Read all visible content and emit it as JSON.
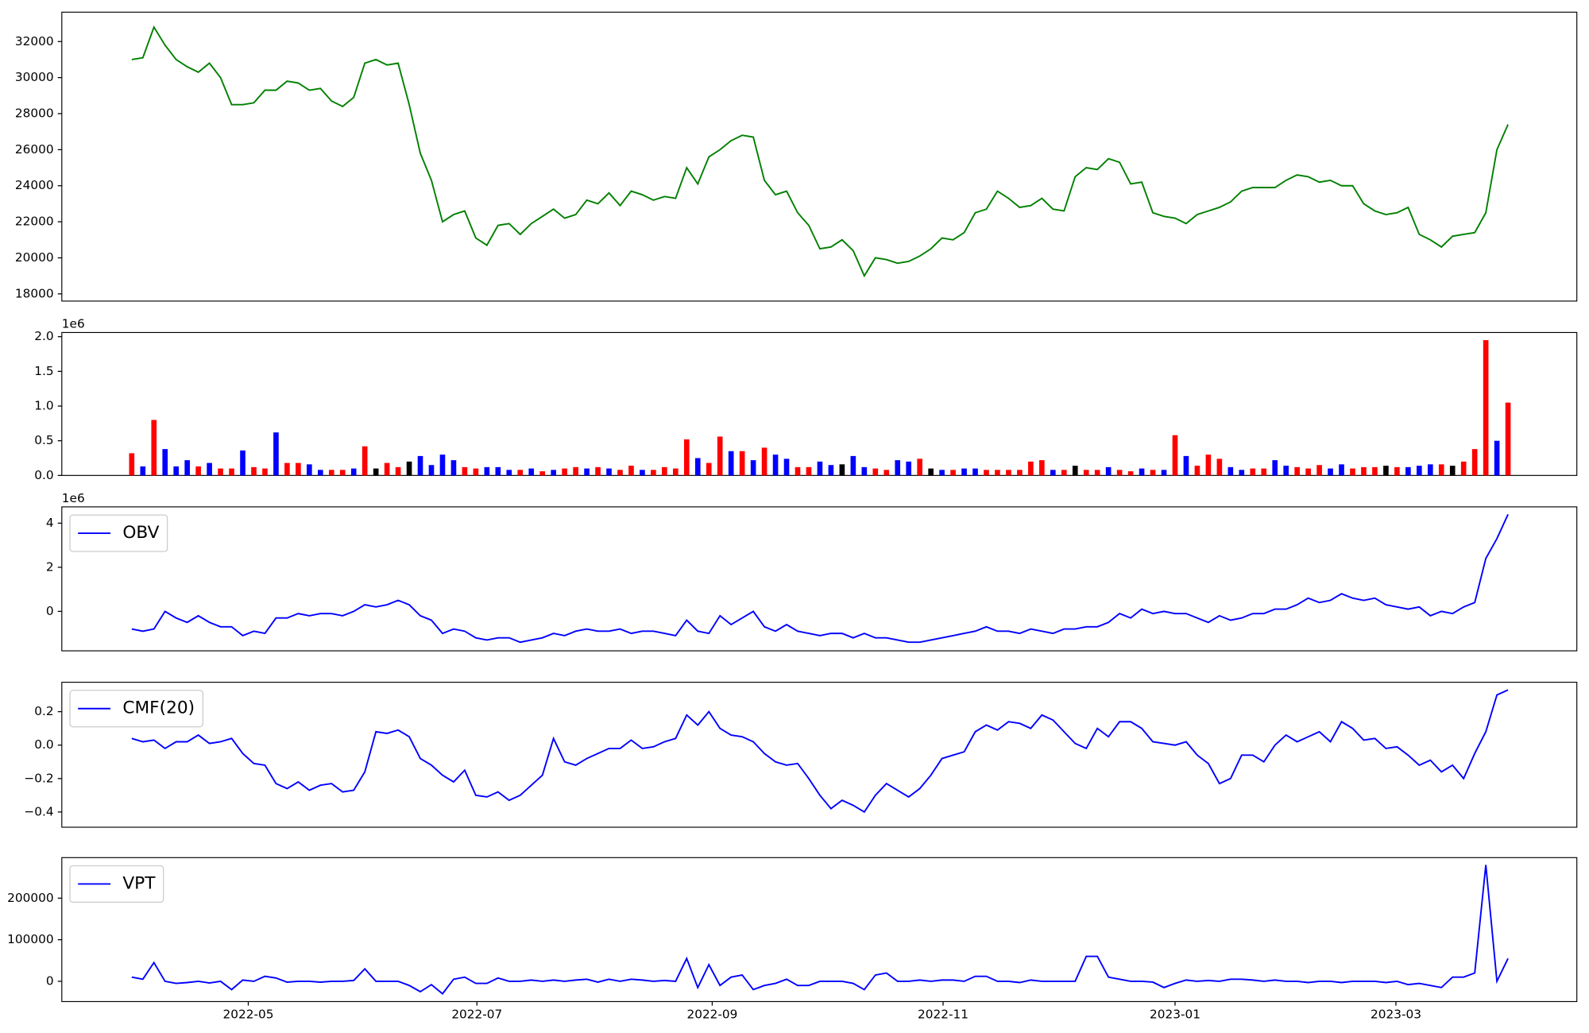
{
  "chart_data": [
    {
      "type": "line",
      "xlim": [
        -6.3,
        130.2
      ],
      "ylim": [
        17600,
        33630
      ],
      "yticks": [
        18000,
        20000,
        22000,
        24000,
        26000,
        28000,
        30000,
        32000
      ],
      "series": [
        {
          "color": "#008000",
          "values": [
            31000,
            31100,
            32800,
            31800,
            31000,
            30600,
            30300,
            30800,
            30000,
            28500,
            28500,
            28600,
            29300,
            29300,
            29800,
            29700,
            29300,
            29400,
            28700,
            28400,
            28900,
            30800,
            31000,
            30700,
            30800,
            28500,
            25800,
            24300,
            22000,
            22400,
            22600,
            21100,
            20700,
            21800,
            21900,
            21300,
            21900,
            22300,
            22700,
            22200,
            22400,
            23200,
            23000,
            23600,
            22900,
            23700,
            23500,
            23200,
            23400,
            23300,
            25000,
            24100,
            25600,
            26000,
            26500,
            26800,
            26700,
            24300,
            23500,
            23700,
            22500,
            21800,
            20500,
            20600,
            21000,
            20400,
            19000,
            20000,
            19900,
            19700,
            19800,
            20100,
            20500,
            21100,
            21000,
            21400,
            22500,
            22700,
            23700,
            23300,
            22800,
            22900,
            23300,
            22700,
            22600,
            24500,
            25000,
            24900,
            25500,
            25300,
            24100,
            24200,
            22500,
            22300,
            22200,
            21900,
            22400,
            22600,
            22800,
            23100,
            23700,
            23900,
            23900,
            23900,
            24300,
            24600,
            24500,
            24200,
            24300,
            24000,
            24000,
            23000,
            22600,
            22400,
            22500,
            22800,
            21300,
            21000,
            20600,
            21200,
            21300,
            21400,
            22500,
            26000,
            27400
          ]
        }
      ]
    },
    {
      "type": "bar",
      "xlim": [
        -6.3,
        130.2
      ],
      "ylim": [
        0,
        2.06
      ],
      "y_offset_label": "1e6",
      "yticks": [
        {
          "value": 0,
          "label": "0.0"
        },
        0.5,
        {
          "value": 1,
          "label": "1.0"
        },
        1.5,
        {
          "value": 2,
          "label": "2.0"
        }
      ],
      "values": [
        0.32,
        0.13,
        0.8,
        0.38,
        0.13,
        0.22,
        0.13,
        0.18,
        0.1,
        0.1,
        0.36,
        0.12,
        0.1,
        0.62,
        0.18,
        0.18,
        0.16,
        0.08,
        0.08,
        0.08,
        0.1,
        0.42,
        0.1,
        0.18,
        0.12,
        0.2,
        0.28,
        0.15,
        0.3,
        0.22,
        0.12,
        0.1,
        0.12,
        0.12,
        0.08,
        0.08,
        0.1,
        0.06,
        0.08,
        0.1,
        0.12,
        0.1,
        0.12,
        0.1,
        0.08,
        0.14,
        0.08,
        0.08,
        0.12,
        0.1,
        0.52,
        0.25,
        0.18,
        0.56,
        0.35,
        0.35,
        0.22,
        0.4,
        0.3,
        0.24,
        0.12,
        0.12,
        0.2,
        0.15,
        0.16,
        0.28,
        0.12,
        0.1,
        0.08,
        0.22,
        0.2,
        0.24,
        0.1,
        0.08,
        0.08,
        0.1,
        0.1,
        0.08,
        0.08,
        0.08,
        0.08,
        0.2,
        0.22,
        0.08,
        0.08,
        0.14,
        0.08,
        0.08,
        0.12,
        0.08,
        0.06,
        0.1,
        0.08,
        0.08,
        0.58,
        0.28,
        0.14,
        0.3,
        0.24,
        0.12,
        0.08,
        0.1,
        0.1,
        0.22,
        0.14,
        0.12,
        0.1,
        0.15,
        0.1,
        0.16,
        0.1,
        0.12,
        0.12,
        0.14,
        0.12,
        0.12,
        0.14,
        0.16,
        0.16,
        0.14,
        0.2,
        0.38,
        1.95,
        0.5,
        1.05
      ],
      "colors": [
        "#ff0000",
        "#0000ff",
        "#ff0000",
        "#0000ff",
        "#0000ff",
        "#0000ff",
        "#ff0000",
        "#0000ff",
        "#ff0000",
        "#ff0000",
        "#0000ff",
        "#ff0000",
        "#ff0000",
        "#0000ff",
        "#ff0000",
        "#ff0000",
        "#0000ff",
        "#0000ff",
        "#ff0000",
        "#ff0000",
        "#0000ff",
        "#ff0000",
        "#000000",
        "#ff0000",
        "#ff0000",
        "#000000",
        "#0000ff",
        "#0000ff",
        "#0000ff",
        "#0000ff",
        "#ff0000",
        "#ff0000",
        "#0000ff",
        "#0000ff",
        "#0000ff",
        "#ff0000",
        "#0000ff",
        "#ff0000",
        "#0000ff",
        "#ff0000",
        "#ff0000",
        "#0000ff",
        "#ff0000",
        "#0000ff",
        "#ff0000",
        "#ff0000",
        "#0000ff",
        "#ff0000",
        "#ff0000",
        "#ff0000",
        "#ff0000",
        "#0000ff",
        "#ff0000",
        "#ff0000",
        "#0000ff",
        "#ff0000",
        "#0000ff",
        "#ff0000",
        "#0000ff",
        "#0000ff",
        "#ff0000",
        "#ff0000",
        "#0000ff",
        "#0000ff",
        "#000000",
        "#0000ff",
        "#0000ff",
        "#ff0000",
        "#ff0000",
        "#0000ff",
        "#0000ff",
        "#ff0000",
        "#000000",
        "#0000ff",
        "#ff0000",
        "#0000ff",
        "#0000ff",
        "#ff0000",
        "#ff0000",
        "#ff0000",
        "#ff0000",
        "#ff0000",
        "#ff0000",
        "#0000ff",
        "#ff0000",
        "#000000",
        "#ff0000",
        "#ff0000",
        "#0000ff",
        "#ff0000",
        "#ff0000",
        "#0000ff",
        "#ff0000",
        "#0000ff",
        "#ff0000",
        "#0000ff",
        "#ff0000",
        "#ff0000",
        "#ff0000",
        "#0000ff",
        "#0000ff",
        "#ff0000",
        "#ff0000",
        "#0000ff",
        "#0000ff",
        "#ff0000",
        "#ff0000",
        "#ff0000",
        "#0000ff",
        "#0000ff",
        "#ff0000",
        "#ff0000",
        "#ff0000",
        "#000000",
        "#ff0000",
        "#0000ff",
        "#0000ff",
        "#0000ff",
        "#ff0000",
        "#000000",
        "#ff0000",
        "#ff0000",
        "#ff0000",
        "#0000ff",
        "#ff0000"
      ]
    },
    {
      "type": "line",
      "xlim": [
        -6.3,
        130.2
      ],
      "ylim": [
        -1.79,
        4.74
      ],
      "y_offset_label": "1e6",
      "yticks": [
        0,
        2,
        4
      ],
      "legend": "upper left",
      "series": [
        {
          "name": "OBV",
          "color": "#0000ff",
          "values": [
            -0.8,
            -0.9,
            -0.8,
            0,
            -0.3,
            -0.5,
            -0.2,
            -0.5,
            -0.7,
            -0.7,
            -1.1,
            -0.9,
            -1.0,
            -0.3,
            -0.3,
            -0.1,
            -0.2,
            -0.1,
            -0.1,
            -0.2,
            0,
            0.3,
            0.2,
            0.3,
            0.5,
            0.3,
            -0.2,
            -0.4,
            -1.0,
            -0.8,
            -0.9,
            -1.2,
            -1.3,
            -1.2,
            -1.2,
            -1.4,
            -1.3,
            -1.2,
            -1.0,
            -1.1,
            -0.9,
            -0.8,
            -0.9,
            -0.9,
            -0.8,
            -1.0,
            -0.9,
            -0.9,
            -1.0,
            -1.1,
            -0.4,
            -0.9,
            -1.0,
            -0.2,
            -0.6,
            -0.3,
            0.0,
            -0.7,
            -0.9,
            -0.6,
            -0.9,
            -1.0,
            -1.1,
            -1.0,
            -1.0,
            -1.2,
            -1.0,
            -1.2,
            -1.2,
            -1.3,
            -1.4,
            -1.4,
            -1.3,
            -1.2,
            -1.1,
            -1.0,
            -0.9,
            -0.7,
            -0.9,
            -0.9,
            -1.0,
            -0.8,
            -0.9,
            -1.0,
            -0.8,
            -0.8,
            -0.7,
            -0.7,
            -0.5,
            -0.1,
            -0.3,
            0.1,
            -0.1,
            0,
            -0.1,
            -0.1,
            -0.3,
            -0.5,
            -0.2,
            -0.4,
            -0.3,
            -0.1,
            -0.1,
            0.1,
            0.1,
            0.3,
            0.6,
            0.4,
            0.5,
            0.8,
            0.6,
            0.5,
            0.6,
            0.3,
            0.2,
            0.1,
            0.2,
            -0.2,
            0,
            -0.1,
            0.2,
            0.4,
            2.4,
            3.3,
            4.4
          ]
        }
      ]
    },
    {
      "type": "line",
      "xlim": [
        -6.3,
        130.2
      ],
      "ylim": [
        -0.491,
        0.376
      ],
      "legend": "upper left",
      "yticks": [
        {
          "value": -0.4,
          "label": "−0.4"
        },
        {
          "value": -0.2,
          "label": "−0.2"
        },
        {
          "value": 0,
          "label": "0.0"
        },
        0.2
      ],
      "series": [
        {
          "name": "CMF(20)",
          "color": "#0000ff",
          "values": [
            0.04,
            0.02,
            0.03,
            -0.02,
            0.02,
            0.02,
            0.06,
            0.01,
            0.02,
            0.04,
            -0.05,
            -0.11,
            -0.12,
            -0.23,
            -0.26,
            -0.22,
            -0.27,
            -0.24,
            -0.23,
            -0.28,
            -0.27,
            -0.16,
            0.08,
            0.07,
            0.09,
            0.05,
            -0.08,
            -0.12,
            -0.18,
            -0.22,
            -0.15,
            -0.3,
            -0.31,
            -0.28,
            -0.33,
            -0.3,
            -0.24,
            -0.18,
            0.04,
            -0.1,
            -0.12,
            -0.08,
            -0.05,
            -0.02,
            -0.02,
            0.03,
            -0.02,
            -0.01,
            0.02,
            0.04,
            0.18,
            0.12,
            0.2,
            0.1,
            0.06,
            0.05,
            0.02,
            -0.05,
            -0.1,
            -0.12,
            -0.11,
            -0.2,
            -0.3,
            -0.38,
            -0.33,
            -0.36,
            -0.4,
            -0.3,
            -0.23,
            -0.27,
            -0.31,
            -0.26,
            -0.18,
            -0.08,
            -0.06,
            -0.04,
            0.08,
            0.12,
            0.09,
            0.14,
            0.13,
            0.1,
            0.18,
            0.15,
            0.08,
            0.01,
            -0.02,
            0.1,
            0.05,
            0.14,
            0.14,
            0.1,
            0.02,
            0.01,
            0,
            0.02,
            -0.06,
            -0.11,
            -0.23,
            -0.2,
            -0.06,
            -0.06,
            -0.1,
            0,
            0.06,
            0.02,
            0.05,
            0.08,
            0.02,
            0.14,
            0.1,
            0.03,
            0.04,
            -0.02,
            -0.01,
            -0.06,
            -0.12,
            -0.09,
            -0.16,
            -0.12,
            -0.2,
            -0.05,
            0.08,
            0.3,
            0.33
          ]
        }
      ]
    },
    {
      "type": "line",
      "xlim": [
        -6.3,
        130.2
      ],
      "ylim": [
        -48780,
        297560
      ],
      "yticks": [
        0,
        100000,
        200000
      ],
      "legend": "upper left",
      "xticks": [
        {
          "value": 10.5,
          "label": "2022-05"
        },
        {
          "value": 31.1,
          "label": "2022-07"
        },
        {
          "value": 52.3,
          "label": "2022-09"
        },
        {
          "value": 73.1,
          "label": "2022-11"
        },
        {
          "value": 94.0,
          "label": "2023-01"
        },
        {
          "value": 113.9,
          "label": "2023-03"
        }
      ],
      "series": [
        {
          "name": "VPT",
          "color": "#0000ff",
          "values": [
            10000,
            5000,
            45000,
            0,
            -5000,
            -3000,
            0,
            -4000,
            0,
            -20000,
            3000,
            0,
            12000,
            8000,
            -2000,
            0,
            0,
            -2000,
            0,
            0,
            2000,
            30000,
            0,
            0,
            0,
            -10000,
            -25000,
            -8000,
            -30000,
            5000,
            10000,
            -5000,
            -5000,
            8000,
            0,
            0,
            3000,
            0,
            3000,
            0,
            3000,
            5000,
            -2000,
            5000,
            0,
            5000,
            3000,
            0,
            2000,
            0,
            55000,
            -15000,
            40000,
            -10000,
            10000,
            15000,
            -20000,
            -10000,
            -5000,
            5000,
            -10000,
            -10000,
            0,
            0,
            0,
            -5000,
            -20000,
            15000,
            20000,
            0,
            0,
            3000,
            0,
            3000,
            3000,
            0,
            12000,
            12000,
            0,
            0,
            -3000,
            3000,
            0,
            0,
            0,
            0,
            60000,
            60000,
            10000,
            5000,
            0,
            0,
            -2000,
            -15000,
            -5000,
            3000,
            0,
            2000,
            0,
            5000,
            5000,
            3000,
            0,
            3000,
            0,
            0,
            -3000,
            0,
            0,
            -3000,
            0,
            0,
            0,
            -3000,
            0,
            -8000,
            -5000,
            -10000,
            -15000,
            10000,
            10000,
            20000,
            280000,
            0,
            55000
          ]
        }
      ]
    }
  ]
}
